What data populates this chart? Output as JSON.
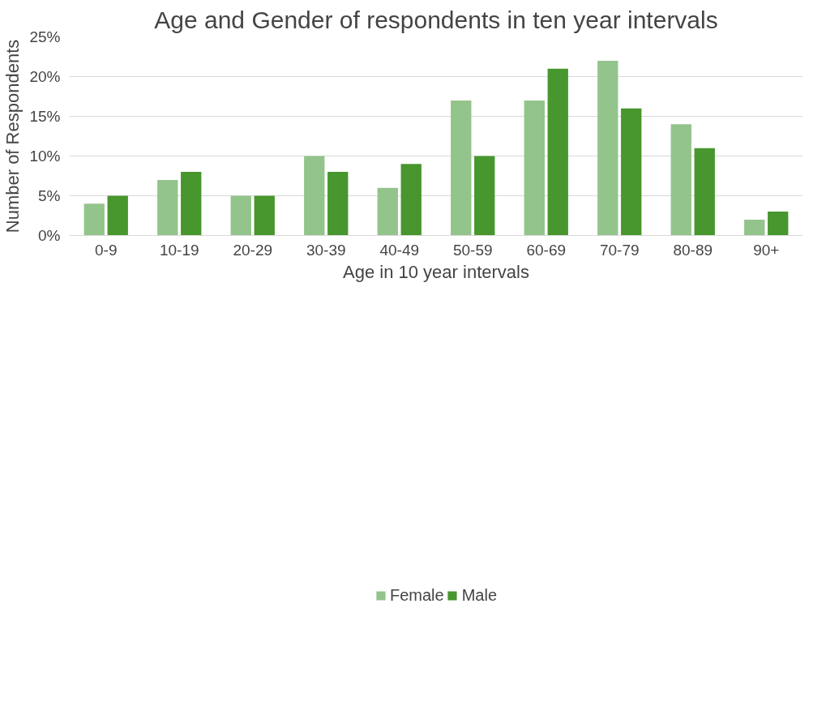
{
  "chart_data": {
    "type": "bar",
    "title": "Age and Gender of respondents in ten year intervals",
    "xlabel": "Age in 10 year intervals",
    "ylabel": "Number of Respondents",
    "categories": [
      "0-9",
      "10-19",
      "20-29",
      "30-39",
      "40-49",
      "50-59",
      "60-69",
      "70-79",
      "80-89",
      "90+"
    ],
    "series": [
      {
        "name": "Female",
        "color": "#93c48b",
        "values": [
          4,
          7,
          5,
          10,
          6,
          17,
          17,
          22,
          14,
          2
        ]
      },
      {
        "name": "Male",
        "color": "#48962e",
        "values": [
          5,
          8,
          5,
          8,
          9,
          10,
          21,
          16,
          11,
          3
        ]
      }
    ],
    "ylim": [
      0,
      25
    ],
    "yticks": [
      {
        "value": 0,
        "label": "0%"
      },
      {
        "value": 5,
        "label": "5%"
      },
      {
        "value": 10,
        "label": "10%"
      },
      {
        "value": 15,
        "label": "15%"
      },
      {
        "value": 20,
        "label": "20%"
      },
      {
        "value": 25,
        "label": "25%"
      }
    ],
    "grid": "y",
    "legend": "bottom"
  }
}
